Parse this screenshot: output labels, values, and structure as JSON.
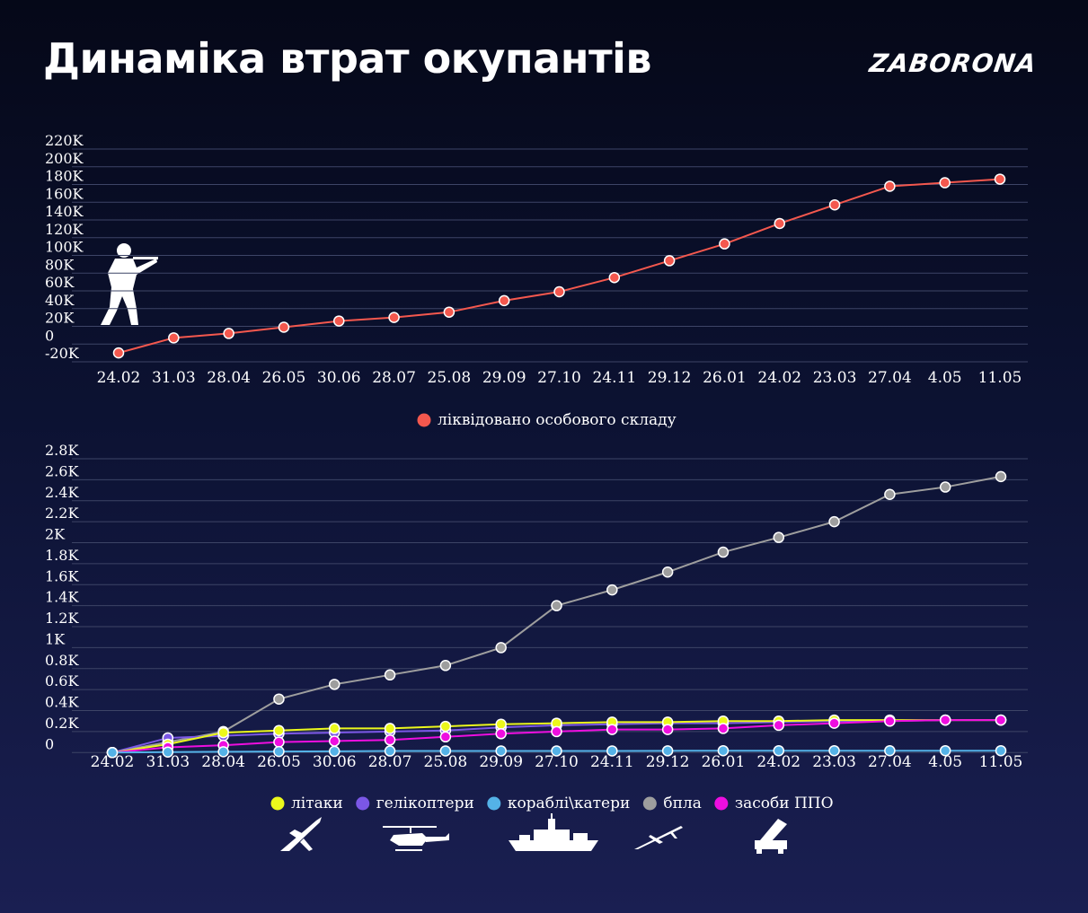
{
  "header": {
    "title": "Динаміка втрат окупантів",
    "logo": "ZABORONA"
  },
  "colors": {
    "personnel": "#f4584e",
    "planes": "#ecf81c",
    "helicopters": "#7b57e6",
    "ships": "#54b2e7",
    "drones": "#9e9e9e",
    "air_defense": "#ee0ee0",
    "grid": "#3d4466"
  },
  "icons": [
    "soldier-icon",
    "plane-icon",
    "helicopter-icon",
    "ship-icon",
    "drone-icon",
    "air-defense-icon"
  ],
  "chart_data": [
    {
      "type": "line",
      "title": "",
      "xlabel": "",
      "ylabel": "",
      "categories": [
        "24.02",
        "31.03",
        "28.04",
        "26.05",
        "30.06",
        "28.07",
        "25.08",
        "29.09",
        "27.10",
        "24.11",
        "29.12",
        "26.01",
        "24.02",
        "23.03",
        "27.04",
        "4.05",
        "11.05"
      ],
      "y_ticks": [
        "220K",
        "200K",
        "180K",
        "160K",
        "140K",
        "120K",
        "100K",
        "80K",
        "60K",
        "40K",
        "20K",
        "0",
        "-20K"
      ],
      "ylim": [
        -20000,
        220000
      ],
      "grid": true,
      "legend_position": "bottom-center",
      "series": [
        {
          "name": "ліквідовано особового складу",
          "color_key": "personnel",
          "values": [
            -10000,
            7000,
            12000,
            19000,
            26000,
            30000,
            36000,
            49000,
            59000,
            75000,
            94000,
            113000,
            136000,
            157000,
            178000,
            182000,
            186000
          ]
        }
      ]
    },
    {
      "type": "line",
      "title": "",
      "xlabel": "",
      "ylabel": "",
      "categories": [
        "24.02",
        "31.03",
        "28.04",
        "26.05",
        "30.06",
        "28.07",
        "25.08",
        "29.09",
        "27.10",
        "24.11",
        "29.12",
        "26.01",
        "24.02",
        "23.03",
        "27.04",
        "4.05",
        "11.05"
      ],
      "y_ticks": [
        "2.8K",
        "2.6K",
        "2.4K",
        "2.2K",
        "2K",
        "1.8K",
        "1.6K",
        "1.4K",
        "1.2K",
        "1K",
        "0.8K",
        "0.6K",
        "0.4K",
        "0.2K",
        "0"
      ],
      "ylim": [
        -100,
        2800
      ],
      "grid": true,
      "legend_position": "bottom-center",
      "series": [
        {
          "name": "бпла",
          "color_key": "drones",
          "values": [
            0,
            100,
            200,
            510,
            650,
            740,
            830,
            1000,
            1400,
            1550,
            1720,
            1910,
            2050,
            2200,
            2460,
            2530,
            2630
          ]
        },
        {
          "name": "гелікоптери",
          "color_key": "helicopters",
          "values": [
            0,
            140,
            160,
            180,
            190,
            200,
            210,
            240,
            260,
            270,
            280,
            280,
            290,
            300,
            300,
            310,
            310
          ]
        },
        {
          "name": "літаки",
          "color_key": "planes",
          "values": [
            0,
            80,
            190,
            210,
            230,
            230,
            250,
            270,
            280,
            290,
            290,
            300,
            300,
            310,
            310,
            310,
            310
          ]
        },
        {
          "name": "засоби ППО",
          "color_key": "air_defense",
          "values": [
            0,
            50,
            70,
            100,
            110,
            120,
            150,
            180,
            200,
            220,
            220,
            230,
            260,
            280,
            300,
            310,
            310
          ]
        },
        {
          "name": "кораблі\\катери",
          "color_key": "ships",
          "values": [
            0,
            5,
            8,
            10,
            12,
            15,
            16,
            16,
            16,
            16,
            17,
            18,
            18,
            18,
            18,
            18,
            18
          ]
        }
      ],
      "legend_order": [
        "літаки",
        "гелікоптери",
        "кораблі\\катери",
        "бпла",
        "засоби ППО"
      ]
    }
  ]
}
